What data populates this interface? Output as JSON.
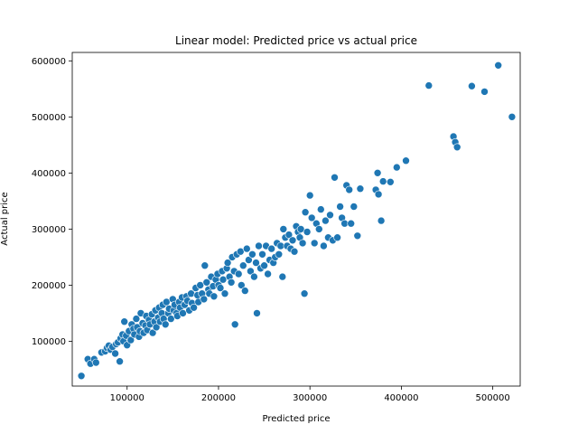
{
  "chart_data": {
    "type": "scatter",
    "title": "Linear model: Predicted price vs actual price",
    "xlabel": "Predicted price",
    "ylabel": "Actual price",
    "xlim": [
      40000,
      530000
    ],
    "ylim": [
      20000,
      615000
    ],
    "xticks": [
      100000,
      200000,
      300000,
      400000,
      500000
    ],
    "xtick_labels": [
      "100000",
      "200000",
      "300000",
      "400000",
      "500000"
    ],
    "yticks": [
      100000,
      200000,
      300000,
      400000,
      500000,
      600000
    ],
    "ytick_labels": [
      "100000",
      "200000",
      "300000",
      "400000",
      "500000",
      "600000"
    ],
    "grid": false,
    "legend": "none",
    "colors": {
      "marker": "#1f77b4",
      "marker_edge": "#ffffff"
    },
    "points": [
      [
        50000,
        38000
      ],
      [
        57000,
        68000
      ],
      [
        60000,
        60000
      ],
      [
        64000,
        68000
      ],
      [
        66000,
        62000
      ],
      [
        72000,
        80000
      ],
      [
        76000,
        82000
      ],
      [
        78000,
        88000
      ],
      [
        80000,
        92000
      ],
      [
        82000,
        85000
      ],
      [
        84000,
        90000
      ],
      [
        87000,
        78000
      ],
      [
        88000,
        95000
      ],
      [
        90000,
        98000
      ],
      [
        92000,
        64000
      ],
      [
        93000,
        105000
      ],
      [
        95000,
        112000
      ],
      [
        96000,
        100000
      ],
      [
        97000,
        135000
      ],
      [
        99000,
        110000
      ],
      [
        100000,
        93000
      ],
      [
        102000,
        118000
      ],
      [
        104000,
        102000
      ],
      [
        105000,
        130000
      ],
      [
        107000,
        122000
      ],
      [
        108000,
        112000
      ],
      [
        110000,
        140000
      ],
      [
        111000,
        125000
      ],
      [
        113000,
        108000
      ],
      [
        114000,
        118000
      ],
      [
        115000,
        150000
      ],
      [
        117000,
        132000
      ],
      [
        118000,
        115000
      ],
      [
        120000,
        128000
      ],
      [
        121000,
        145000
      ],
      [
        122000,
        120000
      ],
      [
        124000,
        138000
      ],
      [
        125000,
        130000
      ],
      [
        127000,
        148000
      ],
      [
        128000,
        115000
      ],
      [
        130000,
        135000
      ],
      [
        131000,
        155000
      ],
      [
        132000,
        125000
      ],
      [
        134000,
        142000
      ],
      [
        135000,
        160000
      ],
      [
        136000,
        135000
      ],
      [
        138000,
        150000
      ],
      [
        139000,
        165000
      ],
      [
        140000,
        140000
      ],
      [
        142000,
        130000
      ],
      [
        143000,
        170000
      ],
      [
        145000,
        150000
      ],
      [
        146000,
        158000
      ],
      [
        148000,
        140000
      ],
      [
        150000,
        175000
      ],
      [
        151000,
        155000
      ],
      [
        152000,
        165000
      ],
      [
        154000,
        150000
      ],
      [
        155000,
        145000
      ],
      [
        157000,
        170000
      ],
      [
        158000,
        160000
      ],
      [
        160000,
        178000
      ],
      [
        161000,
        150000
      ],
      [
        163000,
        165000
      ],
      [
        165000,
        180000
      ],
      [
        166000,
        172000
      ],
      [
        168000,
        155000
      ],
      [
        170000,
        185000
      ],
      [
        171000,
        168000
      ],
      [
        173000,
        160000
      ],
      [
        175000,
        195000
      ],
      [
        177000,
        182000
      ],
      [
        178000,
        170000
      ],
      [
        180000,
        200000
      ],
      [
        182000,
        185000
      ],
      [
        184000,
        175000
      ],
      [
        185000,
        235000
      ],
      [
        187000,
        205000
      ],
      [
        189000,
        192000
      ],
      [
        190000,
        185000
      ],
      [
        192000,
        215000
      ],
      [
        194000,
        198000
      ],
      [
        195000,
        180000
      ],
      [
        197000,
        210000
      ],
      [
        199000,
        220000
      ],
      [
        200000,
        200000
      ],
      [
        202000,
        195000
      ],
      [
        204000,
        225000
      ],
      [
        205000,
        210000
      ],
      [
        207000,
        185000
      ],
      [
        209000,
        230000
      ],
      [
        210000,
        240000
      ],
      [
        212000,
        215000
      ],
      [
        214000,
        205000
      ],
      [
        215000,
        250000
      ],
      [
        217000,
        225000
      ],
      [
        218000,
        130000
      ],
      [
        220000,
        255000
      ],
      [
        222000,
        220000
      ],
      [
        224000,
        260000
      ],
      [
        225000,
        200000
      ],
      [
        227000,
        235000
      ],
      [
        229000,
        190000
      ],
      [
        231000,
        265000
      ],
      [
        233000,
        245000
      ],
      [
        235000,
        225000
      ],
      [
        237000,
        255000
      ],
      [
        239000,
        215000
      ],
      [
        241000,
        240000
      ],
      [
        242000,
        150000
      ],
      [
        244000,
        270000
      ],
      [
        246000,
        230000
      ],
      [
        248000,
        255000
      ],
      [
        250000,
        235000
      ],
      [
        252000,
        270000
      ],
      [
        254000,
        220000
      ],
      [
        256000,
        245000
      ],
      [
        258000,
        265000
      ],
      [
        260000,
        240000
      ],
      [
        262000,
        250000
      ],
      [
        264000,
        275000
      ],
      [
        266000,
        255000
      ],
      [
        268000,
        270000
      ],
      [
        270000,
        215000
      ],
      [
        271000,
        300000
      ],
      [
        273000,
        285000
      ],
      [
        275000,
        270000
      ],
      [
        277000,
        290000
      ],
      [
        279000,
        265000
      ],
      [
        281000,
        280000
      ],
      [
        283000,
        260000
      ],
      [
        285000,
        305000
      ],
      [
        287000,
        295000
      ],
      [
        289000,
        285000
      ],
      [
        290000,
        300000
      ],
      [
        292000,
        275000
      ],
      [
        294000,
        185000
      ],
      [
        295000,
        330000
      ],
      [
        297000,
        295000
      ],
      [
        300000,
        360000
      ],
      [
        302000,
        320000
      ],
      [
        305000,
        275000
      ],
      [
        307000,
        310000
      ],
      [
        310000,
        300000
      ],
      [
        312000,
        335000
      ],
      [
        315000,
        270000
      ],
      [
        317000,
        315000
      ],
      [
        320000,
        285000
      ],
      [
        322000,
        325000
      ],
      [
        325000,
        280000
      ],
      [
        327000,
        392000
      ],
      [
        330000,
        285000
      ],
      [
        333000,
        340000
      ],
      [
        335000,
        320000
      ],
      [
        338000,
        310000
      ],
      [
        340000,
        378000
      ],
      [
        343000,
        370000
      ],
      [
        345000,
        310000
      ],
      [
        348000,
        340000
      ],
      [
        352000,
        288000
      ],
      [
        355000,
        372000
      ],
      [
        372000,
        370000
      ],
      [
        374000,
        400000
      ],
      [
        375000,
        362000
      ],
      [
        378000,
        315000
      ],
      [
        380000,
        385000
      ],
      [
        388000,
        384000
      ],
      [
        395000,
        410000
      ],
      [
        405000,
        422000
      ],
      [
        430000,
        556000
      ],
      [
        457000,
        465000
      ],
      [
        459000,
        455000
      ],
      [
        461000,
        446000
      ],
      [
        477000,
        555000
      ],
      [
        491000,
        545000
      ],
      [
        506000,
        592000
      ],
      [
        521000,
        500000
      ]
    ]
  }
}
